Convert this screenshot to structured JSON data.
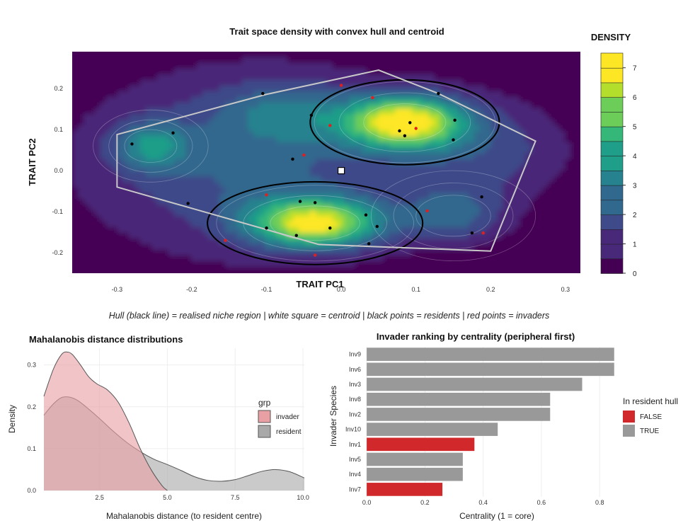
{
  "colors": {
    "viridis": [
      "#440154",
      "#482878",
      "#3e4a89",
      "#31688e",
      "#26828e",
      "#1f9e89",
      "#35b779",
      "#6dcd59",
      "#b4de2c",
      "#fde725"
    ],
    "invader_fill": "#e8a0a4",
    "resident_fill": "#a9a9a9",
    "bar_inside": "#999999",
    "bar_outside": "#d0282b",
    "hull": "#c8c8c8",
    "resident_point": "#000000",
    "invader_point": "#e02020"
  },
  "chart_data": [
    {
      "type": "heatmap",
      "title": "Trait space density with convex hull and centroid",
      "xlabel": "TRAIT PC1",
      "ylabel": "TRAIT PC2",
      "xlim": [
        -0.36,
        0.32
      ],
      "ylim": [
        -0.25,
        0.29
      ],
      "x_ticks": [
        "-0.3",
        "-0.2",
        "-0.1",
        "0.0",
        "0.1",
        "0.2",
        "0.3"
      ],
      "y_ticks": [
        "0.2",
        "0.1",
        "0.0",
        "-0.1",
        "-0.2"
      ],
      "legend_title": "DENSITY",
      "legend_ticks": [
        "7",
        "6",
        "5",
        "4",
        "3",
        "2",
        "1",
        "0"
      ],
      "legend_range": [
        0,
        7.5
      ],
      "caption": "Hull (black line) = realised niche region | white square = centroid | black points = residents | red points = invaders",
      "centroid": [
        0.0,
        0.0
      ],
      "hull": [
        [
          -0.3,
          0.088
        ],
        [
          -0.1,
          0.186
        ],
        [
          0.05,
          0.245
        ],
        [
          0.13,
          0.188
        ],
        [
          0.26,
          0.072
        ],
        [
          0.2,
          -0.196
        ],
        [
          -0.03,
          -0.18
        ],
        [
          -0.3,
          -0.04
        ]
      ],
      "residents": [
        [
          -0.28,
          0.065
        ],
        [
          -0.225,
          0.092
        ],
        [
          -0.205,
          -0.08
        ],
        [
          -0.04,
          0.135
        ],
        [
          -0.065,
          0.028
        ],
        [
          -0.055,
          -0.075
        ],
        [
          -0.035,
          -0.078
        ],
        [
          -0.015,
          -0.14
        ],
        [
          0.033,
          -0.108
        ],
        [
          0.048,
          -0.136
        ],
        [
          0.078,
          0.097
        ],
        [
          0.085,
          0.085
        ],
        [
          0.092,
          0.117
        ],
        [
          0.152,
          0.123
        ],
        [
          0.15,
          0.075
        ],
        [
          0.188,
          -0.064
        ],
        [
          0.175,
          -0.152
        ],
        [
          -0.1,
          -0.14
        ],
        [
          -0.06,
          -0.158
        ],
        [
          0.037,
          -0.178
        ],
        [
          0.13,
          0.188
        ],
        [
          -0.105,
          0.188
        ]
      ],
      "invaders": [
        [
          0.0,
          0.208
        ],
        [
          -0.015,
          0.11
        ],
        [
          -0.05,
          0.038
        ],
        [
          -0.1,
          -0.059
        ],
        [
          -0.155,
          -0.17
        ],
        [
          -0.035,
          -0.206
        ],
        [
          0.042,
          0.178
        ],
        [
          0.1,
          0.103
        ],
        [
          0.115,
          -0.098
        ],
        [
          0.19,
          -0.152
        ]
      ]
    },
    {
      "type": "area",
      "title": "Mahalanobis distance distributions",
      "xlabel": "Mahalanobis distance (to resident centre)",
      "ylabel": "Density",
      "xlim": [
        0.45,
        10.05
      ],
      "ylim": [
        0,
        0.34
      ],
      "x_ticks": [
        2.5,
        5.0,
        7.5,
        10.0
      ],
      "x_tick_labels": [
        "2.5",
        "5.0",
        "7.5",
        "10.0"
      ],
      "y_ticks": [
        0.0,
        0.1,
        0.2,
        0.3
      ],
      "y_tick_labels": [
        "0.0",
        "0.1",
        "0.2",
        "0.3"
      ],
      "legend_title": "grp",
      "legend_placement": "right",
      "series": [
        {
          "name": "invader",
          "x": [
            0.45,
            0.8,
            1.1,
            1.3,
            1.5,
            1.8,
            2.1,
            2.4,
            2.8,
            3.2,
            3.6,
            4.0,
            4.4,
            4.8,
            5.0
          ],
          "values": [
            0.225,
            0.29,
            0.325,
            0.331,
            0.325,
            0.3,
            0.272,
            0.255,
            0.24,
            0.21,
            0.16,
            0.1,
            0.05,
            0.012,
            0.0
          ]
        },
        {
          "name": "resident",
          "x": [
            0.45,
            0.8,
            1.1,
            1.4,
            1.7,
            2.0,
            2.5,
            3.0,
            3.5,
            4.0,
            4.5,
            5.0,
            5.5,
            6.0,
            6.5,
            7.0,
            7.5,
            8.0,
            8.5,
            9.0,
            9.5,
            10.05
          ],
          "values": [
            0.18,
            0.207,
            0.222,
            0.223,
            0.215,
            0.2,
            0.172,
            0.142,
            0.115,
            0.093,
            0.075,
            0.062,
            0.048,
            0.033,
            0.024,
            0.022,
            0.026,
            0.036,
            0.046,
            0.05,
            0.045,
            0.03
          ]
        }
      ]
    },
    {
      "type": "bar",
      "orientation": "horizontal",
      "title": "Invader ranking by centrality (peripheral first)",
      "xlabel": "Centrality (1 = core)",
      "ylabel": "Invader Species",
      "xlim": [
        -0.01,
        0.87
      ],
      "x_ticks": [
        0.0,
        0.2,
        0.4,
        0.6,
        0.8
      ],
      "x_tick_labels": [
        "0.0",
        "0.2",
        "0.4",
        "0.6",
        "0.8"
      ],
      "categories": [
        "Inv9",
        "Inv6",
        "Inv3",
        "Inv8",
        "Inv2",
        "Inv10",
        "Inv1",
        "Inv5",
        "Inv4",
        "Inv7"
      ],
      "values": [
        0.85,
        0.85,
        0.74,
        0.63,
        0.63,
        0.45,
        0.37,
        0.33,
        0.33,
        0.26
      ],
      "in_hull": [
        "TRUE",
        "TRUE",
        "TRUE",
        "TRUE",
        "TRUE",
        "TRUE",
        "FALSE",
        "TRUE",
        "TRUE",
        "FALSE"
      ],
      "legend_title": "In resident hull",
      "legend_entries": [
        "FALSE",
        "TRUE"
      ]
    }
  ]
}
